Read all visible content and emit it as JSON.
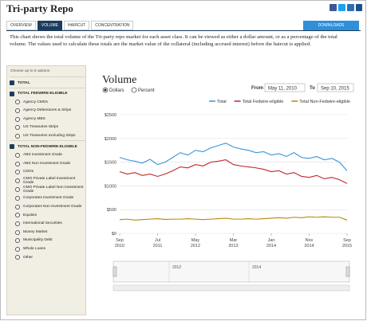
{
  "header": {
    "title": "Tri-party Repo"
  },
  "tabs": [
    "OVERVIEW",
    "VOLUME",
    "HAIRCUT",
    "CONCENTRATION"
  ],
  "active_tab": 1,
  "downloads": "DOWNLOADS",
  "description": "This chart shows the total volume of the Tri-party repo market for each asset class. It can be viewed as either a dollar amount, or as a percentage of the total volume. The values used to calculate these totals are the market value of the collateral (including accrued interest) before the haircut is applied.",
  "sidebar": {
    "hint": "Choose up to 5 options",
    "items": [
      {
        "label": "TOTAL",
        "group": true,
        "checked": true
      },
      {
        "label": "TOTAL FEDWIRE-ELIGIBLE",
        "group": true,
        "checked": true
      },
      {
        "label": "Agency CMOs",
        "group": false,
        "checked": false
      },
      {
        "label": "Agency Debentures & Strips",
        "group": false,
        "checked": false
      },
      {
        "label": "Agency MBS",
        "group": false,
        "checked": false
      },
      {
        "label": "US Treasuries Strips",
        "group": false,
        "checked": false
      },
      {
        "label": "US Treasuries excluding Strips",
        "group": false,
        "checked": false
      },
      {
        "label": "TOTAL NON-FEDWIRE-ELIGIBLE",
        "group": true,
        "checked": true
      },
      {
        "label": "ABS Investment Grade",
        "group": false,
        "checked": false
      },
      {
        "label": "ABS Non Investment Grade",
        "group": false,
        "checked": false
      },
      {
        "label": "CDOs",
        "group": false,
        "checked": false
      },
      {
        "label": "CMO Private Label Investment Grade",
        "group": false,
        "checked": false
      },
      {
        "label": "CMO Private Label Non Investment Grade",
        "group": false,
        "checked": false
      },
      {
        "label": "Corporates Investment Grade",
        "group": false,
        "checked": false
      },
      {
        "label": "Corporates Non Investment Grade",
        "group": false,
        "checked": false
      },
      {
        "label": "Equities",
        "group": false,
        "checked": false
      },
      {
        "label": "International Securities",
        "group": false,
        "checked": false
      },
      {
        "label": "Money Market",
        "group": false,
        "checked": false
      },
      {
        "label": "Municipality Debt",
        "group": false,
        "checked": false
      },
      {
        "label": "Whole Loans",
        "group": false,
        "checked": false
      },
      {
        "label": "Other",
        "group": false,
        "checked": false
      }
    ]
  },
  "controls": {
    "units": [
      "Dollars",
      "Percent"
    ],
    "selected_unit": 0,
    "from_label": "From",
    "from": "May 11, 2010",
    "to_label": "To",
    "to": "Sep 10, 2015"
  },
  "navigator": {
    "labels": [
      "2012",
      "2014"
    ]
  },
  "chart_data": {
    "type": "line",
    "title": "Volume",
    "x": [
      "2010-09",
      "2010-11",
      "2011-01",
      "2011-03",
      "2011-05",
      "2011-07",
      "2011-09",
      "2011-11",
      "2012-01",
      "2012-03",
      "2012-05",
      "2012-07",
      "2012-09",
      "2012-11",
      "2013-01",
      "2013-03",
      "2013-05",
      "2013-07",
      "2013-09",
      "2013-11",
      "2014-01",
      "2014-03",
      "2014-05",
      "2014-07",
      "2014-09",
      "2014-11",
      "2015-01",
      "2015-03",
      "2015-05",
      "2015-07",
      "2015-09"
    ],
    "xlim": [
      "2010-09",
      "2015-09"
    ],
    "xticks": [
      {
        "value": "2010-09",
        "label": "Sep 2010"
      },
      {
        "value": "2011-07",
        "label": "Jul 2011"
      },
      {
        "value": "2012-05",
        "label": "May 2012"
      },
      {
        "value": "2013-03",
        "label": "Mar 2013"
      },
      {
        "value": "2014-01",
        "label": "Jan 2014"
      },
      {
        "value": "2014-11",
        "label": "Nov 2014"
      },
      {
        "value": "2015-09",
        "label": "Sep 2015"
      }
    ],
    "ylim": [
      0,
      2500
    ],
    "yticks": [
      {
        "value": 0,
        "label": "$0"
      },
      {
        "value": 500,
        "label": "$500"
      },
      {
        "value": 1000,
        "label": "$1000"
      },
      {
        "value": 1500,
        "label": "$1500"
      },
      {
        "value": 2000,
        "label": "$2000"
      },
      {
        "value": 2500,
        "label": "$2500"
      }
    ],
    "grid": true,
    "series": [
      {
        "name": "Total",
        "color": "#3a95d8",
        "values": [
          1600,
          1550,
          1520,
          1480,
          1560,
          1450,
          1500,
          1600,
          1700,
          1650,
          1750,
          1720,
          1800,
          1850,
          1900,
          1820,
          1780,
          1750,
          1700,
          1720,
          1650,
          1680,
          1620,
          1700,
          1600,
          1580,
          1620,
          1550,
          1580,
          1500,
          1320
        ]
      },
      {
        "name": "Total Fedwire-eligible",
        "color": "#c0262c",
        "values": [
          1300,
          1250,
          1280,
          1220,
          1250,
          1200,
          1250,
          1320,
          1400,
          1380,
          1450,
          1420,
          1500,
          1520,
          1550,
          1450,
          1420,
          1400,
          1380,
          1350,
          1300,
          1320,
          1250,
          1280,
          1200,
          1180,
          1220,
          1150,
          1180,
          1130,
          1050
        ]
      },
      {
        "name": "Total Non-Fedwire-eligible",
        "color": "#b8860b",
        "values": [
          290,
          300,
          280,
          290,
          300,
          310,
          295,
          300,
          300,
          310,
          300,
          290,
          300,
          310,
          320,
          300,
          300,
          310,
          300,
          310,
          320,
          330,
          320,
          340,
          330,
          350,
          340,
          350,
          340,
          340,
          280
        ]
      }
    ]
  }
}
